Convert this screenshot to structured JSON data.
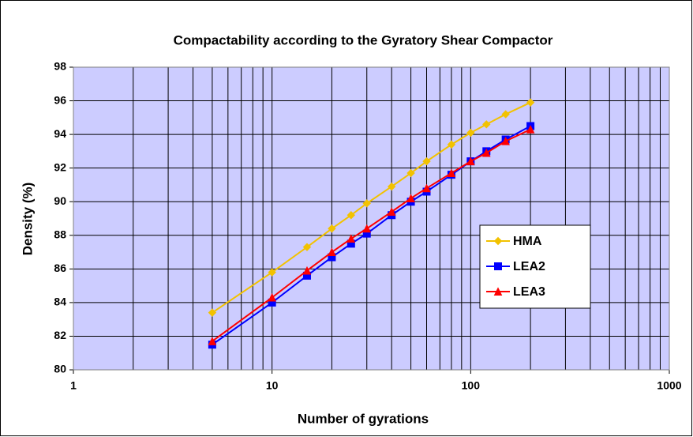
{
  "chart_data": {
    "type": "line",
    "title": "Compactability according to the Gyratory Shear Compactor",
    "xlabel": "Number of gyrations",
    "ylabel": "Density (%)",
    "xscale": "log",
    "x": [
      5,
      10,
      15,
      20,
      25,
      30,
      40,
      50,
      60,
      80,
      100,
      120,
      150,
      200
    ],
    "series": [
      {
        "name": "HMA",
        "color": "#f2c200",
        "marker": "diamond",
        "values": [
          83.4,
          85.8,
          87.3,
          88.4,
          89.2,
          89.9,
          90.9,
          91.7,
          92.4,
          93.4,
          94.1,
          94.6,
          95.2,
          95.9
        ]
      },
      {
        "name": "LEA2",
        "color": "#0000ff",
        "marker": "square",
        "values": [
          81.5,
          84.0,
          85.6,
          86.7,
          87.5,
          88.1,
          89.2,
          90.0,
          90.6,
          91.6,
          92.4,
          93.0,
          93.7,
          94.5
        ]
      },
      {
        "name": "LEA3",
        "color": "#ff0000",
        "marker": "triangle",
        "values": [
          81.7,
          84.3,
          85.9,
          87.0,
          87.8,
          88.4,
          89.4,
          90.2,
          90.8,
          91.7,
          92.4,
          92.9,
          93.6,
          94.3
        ]
      }
    ],
    "xlim": [
      1,
      1000
    ],
    "xticks": [
      1,
      10,
      100,
      1000
    ],
    "xminorticks": [
      2,
      3,
      4,
      5,
      6,
      7,
      8,
      9,
      20,
      30,
      40,
      50,
      60,
      70,
      80,
      90,
      200,
      300,
      400,
      500,
      600,
      700,
      800,
      900
    ],
    "ylim": [
      80,
      98
    ],
    "yticks": [
      80,
      82,
      84,
      86,
      88,
      90,
      92,
      94,
      96,
      98
    ],
    "grid": true,
    "plot_background": "#ccccff",
    "legend_position": "right"
  }
}
